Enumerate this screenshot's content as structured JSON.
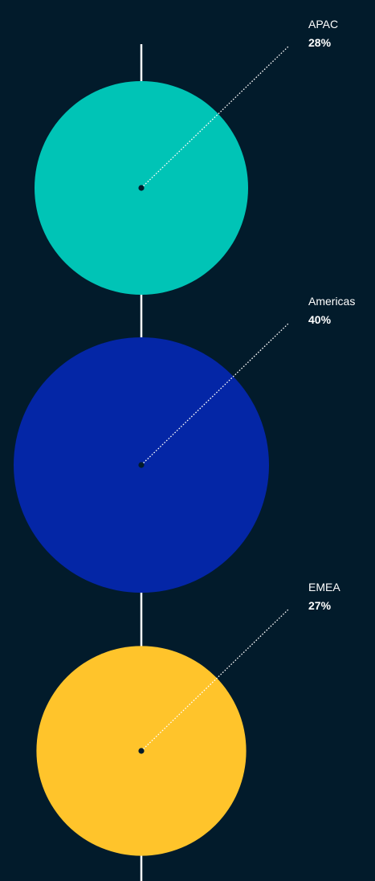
{
  "chart_data": {
    "type": "bubble",
    "title": "",
    "series": [
      {
        "name": "APAC",
        "value": 28,
        "label": "28%",
        "color": "#00c4b6"
      },
      {
        "name": "Americas",
        "value": 40,
        "label": "40%",
        "color": "#0426a6"
      },
      {
        "name": "EMEA",
        "value": 27,
        "label": "27%",
        "color": "#ffc42b"
      }
    ],
    "unit": "%",
    "colors": {
      "background": "#021b2b",
      "axis": "#ffffff",
      "text": "#ffffff",
      "leader": "#ffffff",
      "center_dot": "#021b2b"
    }
  }
}
